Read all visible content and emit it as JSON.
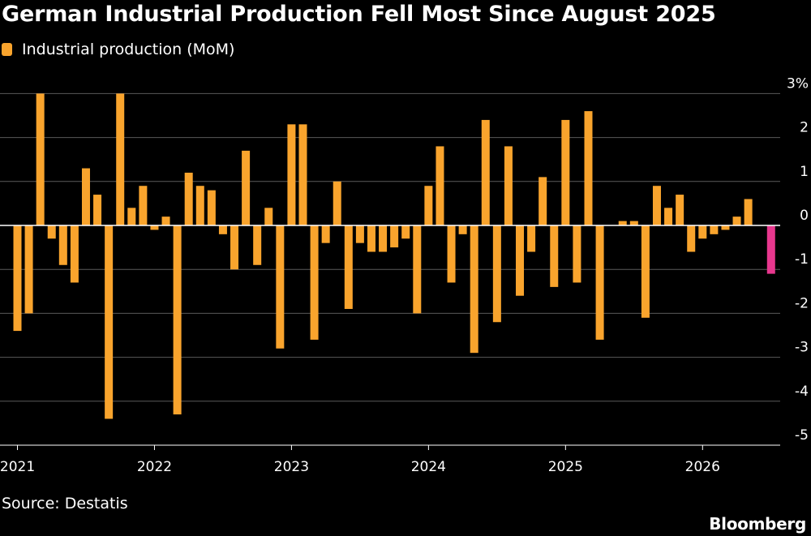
{
  "title": "German Industrial Production Fell Most Since August 2025",
  "legend": {
    "label": "Industrial production (MoM)",
    "color": "#f9a42d"
  },
  "source": "Source: Destatis",
  "brand": "Bloomberg",
  "colors": {
    "bar": "#f9a42d",
    "highlight": "#e8378e",
    "grid": "#5a5a5a",
    "zero": "#ffffff",
    "background": "#000000"
  },
  "chart_data": {
    "type": "bar",
    "series": [
      {
        "name": "Industrial production (MoM)",
        "x": [
          "2021-01",
          "2021-02",
          "2021-03",
          "2021-04",
          "2021-05",
          "2021-06",
          "2021-07",
          "2021-08",
          "2021-09",
          "2021-10",
          "2021-11",
          "2021-12",
          "2022-01",
          "2022-02",
          "2022-03",
          "2022-04",
          "2022-05",
          "2022-06",
          "2022-07",
          "2022-08",
          "2022-09",
          "2022-10",
          "2022-11",
          "2022-12",
          "2023-01",
          "2023-02",
          "2023-03",
          "2023-04",
          "2023-05",
          "2023-06",
          "2023-07",
          "2023-08",
          "2023-09",
          "2023-10",
          "2023-11",
          "2023-12",
          "2024-01",
          "2024-02",
          "2024-03",
          "2024-04",
          "2024-05",
          "2024-06",
          "2024-07",
          "2024-08",
          "2024-09",
          "2024-10",
          "2024-11",
          "2024-12",
          "2025-01",
          "2025-02",
          "2025-03",
          "2025-04",
          "2025-05",
          "2025-06",
          "2025-07",
          "2025-08",
          "2025-09",
          "2025-10",
          "2025-11",
          "2025-12",
          "2026-01",
          "2026-02",
          "2026-03",
          "2026-04",
          "2026-05",
          "2026-06",
          "2026-07"
        ],
        "values": [
          -2.4,
          -2.0,
          3.0,
          -0.3,
          -0.9,
          -1.3,
          1.3,
          0.7,
          -4.4,
          3.0,
          0.4,
          0.9,
          -0.1,
          0.2,
          -4.3,
          1.2,
          0.9,
          0.8,
          -0.2,
          -1.0,
          1.7,
          -0.9,
          0.4,
          -2.8,
          2.3,
          2.3,
          -2.6,
          -0.4,
          1.0,
          -1.9,
          -0.4,
          -0.6,
          -0.6,
          -0.5,
          -0.3,
          -2.0,
          0.9,
          1.8,
          -1.3,
          -0.2,
          -2.9,
          2.4,
          -2.2,
          1.8,
          -1.6,
          -0.6,
          1.1,
          -1.4,
          2.4,
          -1.3,
          2.6,
          -2.6,
          0.0,
          0.1,
          0.1,
          -2.1,
          0.9,
          0.4,
          0.7,
          -0.6,
          -0.3,
          -0.2,
          -0.1,
          0.2,
          0.6,
          0.0,
          -1.1
        ],
        "highlight_last": true
      }
    ],
    "x_tick_labels": [
      "2021",
      "2022",
      "2023",
      "2024",
      "2025",
      "2026"
    ],
    "y_tick_labels": [
      "3%",
      "2",
      "1",
      "0",
      "-1",
      "-2",
      "-3",
      "-4",
      "-5"
    ],
    "y_ticks": [
      3,
      2,
      1,
      0,
      -1,
      -2,
      -3,
      -4,
      -5
    ],
    "ylim": [
      -5,
      3
    ],
    "grid": true,
    "y_axis_position": "right"
  }
}
